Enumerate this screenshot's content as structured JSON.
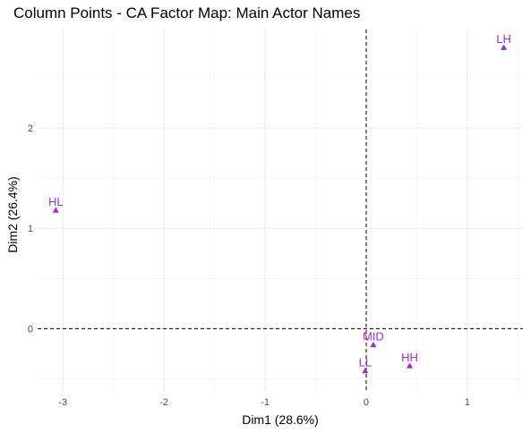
{
  "chart_data": {
    "type": "scatter",
    "title": "Column Points - CA Factor Map: Main Actor Names",
    "xlabel": "Dim1 (28.6%)",
    "ylabel": "Dim2 (26.4%)",
    "xlim": [
      -3.25,
      1.55
    ],
    "ylim": [
      -0.62,
      2.98
    ],
    "xticks": [
      -3,
      -2,
      -1,
      0,
      1
    ],
    "xtick_labels": [
      "-3",
      "-2",
      "-1",
      "0",
      "1"
    ],
    "yticks": [
      0,
      1,
      2
    ],
    "ytick_labels": [
      "0",
      "1",
      "2"
    ],
    "x_minor_ticks": [
      -2.5,
      -1.5,
      -0.5,
      0.5,
      1.5
    ],
    "y_minor_ticks": [
      -0.5,
      0.5,
      1.5,
      2.5
    ],
    "grid": true,
    "reference_lines": {
      "x": 0,
      "y": 0,
      "style": "dashed"
    },
    "marker": "triangle",
    "point_color": "#9932CC",
    "points": [
      {
        "label": "LH",
        "x": 1.36,
        "y": 2.8
      },
      {
        "label": "HL",
        "x": -3.07,
        "y": 1.18
      },
      {
        "label": "MID",
        "x": 0.07,
        "y": -0.16
      },
      {
        "label": "HH",
        "x": 0.43,
        "y": -0.37
      },
      {
        "label": "LL",
        "x": -0.01,
        "y": -0.42
      }
    ]
  }
}
